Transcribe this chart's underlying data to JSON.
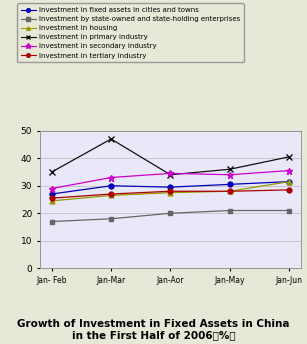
{
  "x_labels": [
    "Jan- Feb",
    "Jan-Mar",
    "Jan-Aor",
    "Jan-May",
    "Jan-Jun"
  ],
  "series": [
    {
      "label": "Investment in fixed assets in cities and towns",
      "color": "#0000bb",
      "marker": "o",
      "markersize": 3.5,
      "values": [
        27,
        30,
        29.5,
        30.5,
        31.5
      ]
    },
    {
      "label": "Investment by state-owned and state-holding enterprises",
      "color": "#666666",
      "marker": "s",
      "markersize": 3.5,
      "values": [
        17,
        18,
        20,
        21,
        21
      ]
    },
    {
      "label": "Investment in housing",
      "color": "#999900",
      "marker": "^",
      "markersize": 3.5,
      "values": [
        24.5,
        26.5,
        27.5,
        28,
        31.5
      ]
    },
    {
      "label": "Investment in primary industry",
      "color": "#111111",
      "marker": "x",
      "markersize": 4.5,
      "values": [
        35,
        47,
        34,
        36,
        40.5
      ]
    },
    {
      "label": "Investment in secondary industry",
      "color": "#cc00cc",
      "marker": "*",
      "markersize": 5,
      "values": [
        29,
        33,
        34.5,
        34,
        35.5
      ]
    },
    {
      "label": "Investment in tertiary industry",
      "color": "#aa0000",
      "marker": "o",
      "markersize": 3.5,
      "values": [
        25.5,
        27,
        28,
        28,
        28.5
      ]
    }
  ],
  "ylim": [
    0,
    50
  ],
  "yticks": [
    0,
    10,
    20,
    30,
    40,
    50
  ],
  "title_line1": "Growth of Investment in Fixed Assets in China",
  "title_line2": "in the First Half of 2006（%）",
  "bg_color": "#e8e8d8",
  "plot_bg": "#e8e8f8",
  "legend_fontsize": 5.0,
  "title_fontsize": 7.5
}
